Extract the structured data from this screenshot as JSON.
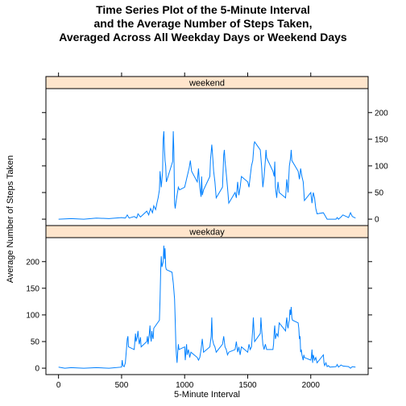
{
  "chart_data": {
    "type": "line",
    "title_lines": [
      "Time Series Plot of the 5-Minute Interval",
      "and the Average Number of Steps Taken,",
      "Averaged Across All Weekday Days or Weekend Days"
    ],
    "xlabel": "5-Minute Interval",
    "ylabel": "Average Number of Steps Taken",
    "xlim": [
      -100,
      2455
    ],
    "ylim": [
      -12,
      245
    ],
    "x_ticks": [
      0,
      500,
      1000,
      1500,
      2000
    ],
    "y_ticks": [
      0,
      50,
      100,
      150,
      200
    ],
    "grid": false,
    "line_color": "#0080ff",
    "strip_color": "#ffe5cc",
    "panels": [
      {
        "label": "weekend",
        "points": [
          [
            0,
            0
          ],
          [
            100,
            1
          ],
          [
            200,
            0
          ],
          [
            300,
            2
          ],
          [
            400,
            1
          ],
          [
            500,
            3
          ],
          [
            530,
            2
          ],
          [
            545,
            8
          ],
          [
            560,
            2
          ],
          [
            600,
            5
          ],
          [
            620,
            2
          ],
          [
            630,
            10
          ],
          [
            650,
            4
          ],
          [
            700,
            15
          ],
          [
            715,
            8
          ],
          [
            730,
            20
          ],
          [
            745,
            12
          ],
          [
            755,
            25
          ],
          [
            770,
            18
          ],
          [
            780,
            30
          ],
          [
            790,
            40
          ],
          [
            800,
            55
          ],
          [
            805,
            90
          ],
          [
            810,
            75
          ],
          [
            815,
            60
          ],
          [
            825,
            88
          ],
          [
            830,
            150
          ],
          [
            835,
            165
          ],
          [
            840,
            130
          ],
          [
            845,
            110
          ],
          [
            850,
            100
          ],
          [
            855,
            70
          ],
          [
            905,
            108
          ],
          [
            910,
            165
          ],
          [
            915,
            125
          ],
          [
            920,
            30
          ],
          [
            925,
            20
          ],
          [
            930,
            30
          ],
          [
            940,
            45
          ],
          [
            950,
            60
          ],
          [
            960,
            55
          ],
          [
            1000,
            60
          ],
          [
            1010,
            70
          ],
          [
            1020,
            80
          ],
          [
            1035,
            95
          ],
          [
            1045,
            110
          ],
          [
            1055,
            90
          ],
          [
            1100,
            70
          ],
          [
            1110,
            95
          ],
          [
            1120,
            60
          ],
          [
            1130,
            42
          ],
          [
            1135,
            80
          ],
          [
            1140,
            45
          ],
          [
            1150,
            55
          ],
          [
            1200,
            80
          ],
          [
            1205,
            112
          ],
          [
            1210,
            125
          ],
          [
            1215,
            140
          ],
          [
            1220,
            125
          ],
          [
            1230,
            90
          ],
          [
            1240,
            70
          ],
          [
            1250,
            40
          ],
          [
            1300,
            60
          ],
          [
            1310,
            120
          ],
          [
            1315,
            130
          ],
          [
            1320,
            110
          ],
          [
            1330,
            85
          ],
          [
            1340,
            60
          ],
          [
            1350,
            30
          ],
          [
            1400,
            50
          ],
          [
            1410,
            40
          ],
          [
            1420,
            70
          ],
          [
            1430,
            45
          ],
          [
            1440,
            60
          ],
          [
            1450,
            80
          ],
          [
            1500,
            70
          ],
          [
            1510,
            60
          ],
          [
            1520,
            80
          ],
          [
            1530,
            100
          ],
          [
            1540,
            110
          ],
          [
            1550,
            140
          ],
          [
            1555,
            145
          ],
          [
            1600,
            130
          ],
          [
            1610,
            100
          ],
          [
            1620,
            60
          ],
          [
            1630,
            80
          ],
          [
            1640,
            110
          ],
          [
            1645,
            130
          ],
          [
            1650,
            115
          ],
          [
            1700,
            90
          ],
          [
            1710,
            80
          ],
          [
            1715,
            108
          ],
          [
            1720,
            60
          ],
          [
            1730,
            40
          ],
          [
            1740,
            70
          ],
          [
            1750,
            50
          ],
          [
            1800,
            40
          ],
          [
            1810,
            75
          ],
          [
            1820,
            50
          ],
          [
            1830,
            100
          ],
          [
            1840,
            115
          ],
          [
            1845,
            130
          ],
          [
            1850,
            110
          ],
          [
            1900,
            90
          ],
          [
            1910,
            75
          ],
          [
            1920,
            95
          ],
          [
            1930,
            80
          ],
          [
            1940,
            70
          ],
          [
            1950,
            35
          ],
          [
            2000,
            50
          ],
          [
            2010,
            30
          ],
          [
            2020,
            50
          ],
          [
            2030,
            40
          ],
          [
            2040,
            20
          ],
          [
            2050,
            10
          ],
          [
            2100,
            12
          ],
          [
            2110,
            8
          ],
          [
            2130,
            0
          ],
          [
            2200,
            0
          ],
          [
            2210,
            3
          ],
          [
            2220,
            0
          ],
          [
            2240,
            4
          ],
          [
            2255,
            8
          ],
          [
            2300,
            3
          ],
          [
            2315,
            12
          ],
          [
            2330,
            5
          ],
          [
            2355,
            2
          ]
        ]
      },
      {
        "label": "weekday",
        "points": [
          [
            0,
            2
          ],
          [
            50,
            0
          ],
          [
            100,
            1
          ],
          [
            200,
            0
          ],
          [
            300,
            1
          ],
          [
            400,
            0
          ],
          [
            500,
            2
          ],
          [
            505,
            15
          ],
          [
            510,
            5
          ],
          [
            520,
            3
          ],
          [
            530,
            10
          ],
          [
            545,
            55
          ],
          [
            550,
            60
          ],
          [
            555,
            40
          ],
          [
            600,
            35
          ],
          [
            605,
            50
          ],
          [
            610,
            65
          ],
          [
            615,
            50
          ],
          [
            625,
            60
          ],
          [
            630,
            70
          ],
          [
            635,
            55
          ],
          [
            640,
            45
          ],
          [
            650,
            58
          ],
          [
            655,
            40
          ],
          [
            700,
            50
          ],
          [
            705,
            60
          ],
          [
            710,
            45
          ],
          [
            715,
            55
          ],
          [
            720,
            65
          ],
          [
            725,
            80
          ],
          [
            730,
            60
          ],
          [
            735,
            50
          ],
          [
            740,
            70
          ],
          [
            745,
            60
          ],
          [
            750,
            55
          ],
          [
            755,
            75
          ],
          [
            800,
            90
          ],
          [
            805,
            130
          ],
          [
            810,
            185
          ],
          [
            815,
            210
          ],
          [
            820,
            190
          ],
          [
            825,
            195
          ],
          [
            830,
            200
          ],
          [
            835,
            230
          ],
          [
            840,
            205
          ],
          [
            845,
            225
          ],
          [
            850,
            190
          ],
          [
            855,
            185
          ],
          [
            900,
            180
          ],
          [
            905,
            170
          ],
          [
            910,
            160
          ],
          [
            915,
            145
          ],
          [
            920,
            130
          ],
          [
            925,
            90
          ],
          [
            930,
            45
          ],
          [
            935,
            25
          ],
          [
            940,
            10
          ],
          [
            945,
            30
          ],
          [
            950,
            45
          ],
          [
            955,
            35
          ],
          [
            1000,
            40
          ],
          [
            1005,
            15
          ],
          [
            1010,
            30
          ],
          [
            1015,
            45
          ],
          [
            1020,
            25
          ],
          [
            1030,
            35
          ],
          [
            1040,
            20
          ],
          [
            1050,
            30
          ],
          [
            1100,
            20
          ],
          [
            1110,
            15
          ],
          [
            1120,
            20
          ],
          [
            1130,
            35
          ],
          [
            1140,
            55
          ],
          [
            1150,
            30
          ],
          [
            1200,
            40
          ],
          [
            1210,
            60
          ],
          [
            1215,
            95
          ],
          [
            1220,
            55
          ],
          [
            1230,
            45
          ],
          [
            1240,
            40
          ],
          [
            1250,
            30
          ],
          [
            1300,
            45
          ],
          [
            1310,
            60
          ],
          [
            1320,
            40
          ],
          [
            1330,
            35
          ],
          [
            1340,
            25
          ],
          [
            1350,
            30
          ],
          [
            1400,
            35
          ],
          [
            1410,
            50
          ],
          [
            1420,
            30
          ],
          [
            1430,
            40
          ],
          [
            1440,
            25
          ],
          [
            1450,
            40
          ],
          [
            1500,
            30
          ],
          [
            1510,
            45
          ],
          [
            1520,
            35
          ],
          [
            1530,
            40
          ],
          [
            1540,
            75
          ],
          [
            1545,
            95
          ],
          [
            1550,
            70
          ],
          [
            1555,
            50
          ],
          [
            1600,
            65
          ],
          [
            1605,
            95
          ],
          [
            1610,
            75
          ],
          [
            1615,
            60
          ],
          [
            1620,
            45
          ],
          [
            1630,
            35
          ],
          [
            1640,
            45
          ],
          [
            1650,
            35
          ],
          [
            1700,
            35
          ],
          [
            1705,
            45
          ],
          [
            1710,
            70
          ],
          [
            1715,
            80
          ],
          [
            1720,
            55
          ],
          [
            1730,
            65
          ],
          [
            1740,
            60
          ],
          [
            1750,
            85
          ],
          [
            1800,
            70
          ],
          [
            1805,
            85
          ],
          [
            1810,
            95
          ],
          [
            1815,
            80
          ],
          [
            1820,
            75
          ],
          [
            1825,
            85
          ],
          [
            1830,
            90
          ],
          [
            1835,
            110
          ],
          [
            1840,
            100
          ],
          [
            1845,
            115
          ],
          [
            1850,
            95
          ],
          [
            1855,
            90
          ],
          [
            1900,
            85
          ],
          [
            1905,
            75
          ],
          [
            1910,
            55
          ],
          [
            1915,
            60
          ],
          [
            1920,
            30
          ],
          [
            1925,
            35
          ],
          [
            1930,
            25
          ],
          [
            1940,
            15
          ],
          [
            1945,
            25
          ],
          [
            1950,
            20
          ],
          [
            2000,
            15
          ],
          [
            2005,
            20
          ],
          [
            2010,
            35
          ],
          [
            2015,
            10
          ],
          [
            2020,
            25
          ],
          [
            2030,
            15
          ],
          [
            2040,
            20
          ],
          [
            2050,
            10
          ],
          [
            2100,
            25
          ],
          [
            2105,
            10
          ],
          [
            2110,
            5
          ],
          [
            2120,
            10
          ],
          [
            2130,
            3
          ],
          [
            2140,
            5
          ],
          [
            2150,
            2
          ],
          [
            2200,
            3
          ],
          [
            2210,
            7
          ],
          [
            2220,
            2
          ],
          [
            2240,
            6
          ],
          [
            2255,
            4
          ],
          [
            2300,
            3
          ],
          [
            2315,
            0
          ],
          [
            2330,
            3
          ],
          [
            2355,
            2
          ]
        ]
      }
    ]
  }
}
